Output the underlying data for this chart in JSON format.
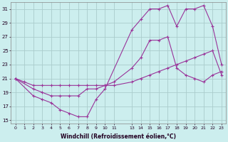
{
  "xlabel": "Windchill (Refroidissement éolien,°C)",
  "background_color": "#cceeee",
  "grid_color": "#aacccc",
  "line_color": "#993399",
  "xlim": [
    -0.5,
    23.5
  ],
  "ylim": [
    14.5,
    32
  ],
  "yticks": [
    15,
    17,
    19,
    21,
    23,
    25,
    27,
    29,
    31
  ],
  "xticks": [
    0,
    1,
    2,
    3,
    4,
    5,
    6,
    7,
    8,
    9,
    10,
    11,
    13,
    14,
    15,
    16,
    17,
    18,
    19,
    20,
    21,
    22,
    23
  ],
  "series": [
    {
      "x": [
        0,
        1,
        2,
        3,
        4,
        5,
        6,
        7,
        8,
        9,
        10,
        11,
        13,
        14,
        15,
        16,
        17,
        18,
        19,
        20,
        21,
        22,
        23
      ],
      "y": [
        21.0,
        20.5,
        20.0,
        20.0,
        20.0,
        20.0,
        20.0,
        20.0,
        20.0,
        20.0,
        20.0,
        20.0,
        20.5,
        21.0,
        21.5,
        22.0,
        22.5,
        23.0,
        23.5,
        24.0,
        24.5,
        25.0,
        21.5
      ]
    },
    {
      "x": [
        0,
        2,
        3,
        4,
        5,
        6,
        7,
        8,
        9,
        10,
        11,
        13,
        14,
        15,
        16,
        17,
        18,
        19,
        20,
        21,
        22,
        23
      ],
      "y": [
        21.0,
        19.5,
        19.0,
        18.5,
        18.5,
        18.5,
        18.5,
        19.5,
        19.5,
        20.0,
        20.5,
        22.5,
        24.0,
        26.5,
        26.5,
        27.0,
        22.5,
        21.5,
        21.0,
        20.5,
        21.5,
        22.0
      ]
    },
    {
      "x": [
        0,
        2,
        3,
        4,
        5,
        6,
        7,
        8,
        9,
        10,
        13,
        14,
        15,
        16,
        17,
        18,
        19,
        20,
        21,
        22,
        23
      ],
      "y": [
        21.0,
        18.5,
        18.0,
        17.5,
        16.5,
        16.0,
        15.5,
        15.5,
        18.0,
        19.5,
        28.0,
        29.5,
        31.0,
        31.0,
        31.5,
        28.5,
        31.0,
        31.0,
        31.5,
        28.5,
        23.0
      ]
    }
  ]
}
